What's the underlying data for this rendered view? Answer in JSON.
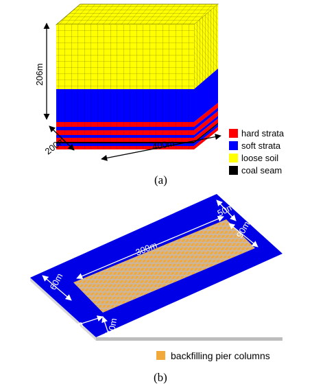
{
  "model_a": {
    "dim_height": "206m",
    "dim_width": "200m",
    "dim_length": "400m",
    "caption": "(a)",
    "legend": [
      {
        "label": "hard strata",
        "color": "#ff0000"
      },
      {
        "label": "soft strata",
        "color": "#0000ff"
      },
      {
        "label": "loose soil",
        "color": "#ffff00"
      },
      {
        "label": "coal seam",
        "color": "#000000"
      }
    ]
  },
  "model_b": {
    "dim_length": "300m",
    "dim_top_margin": "50m",
    "dim_right_margin": "90m",
    "dim_left_margin": "60m",
    "dim_bottom_left": "50m",
    "dim_bottom_margin": "50m",
    "legend_label": "backfilling pier columns",
    "legend_color": "#f2a93b",
    "caption": "(b)",
    "plate_color": "#0000e6"
  }
}
